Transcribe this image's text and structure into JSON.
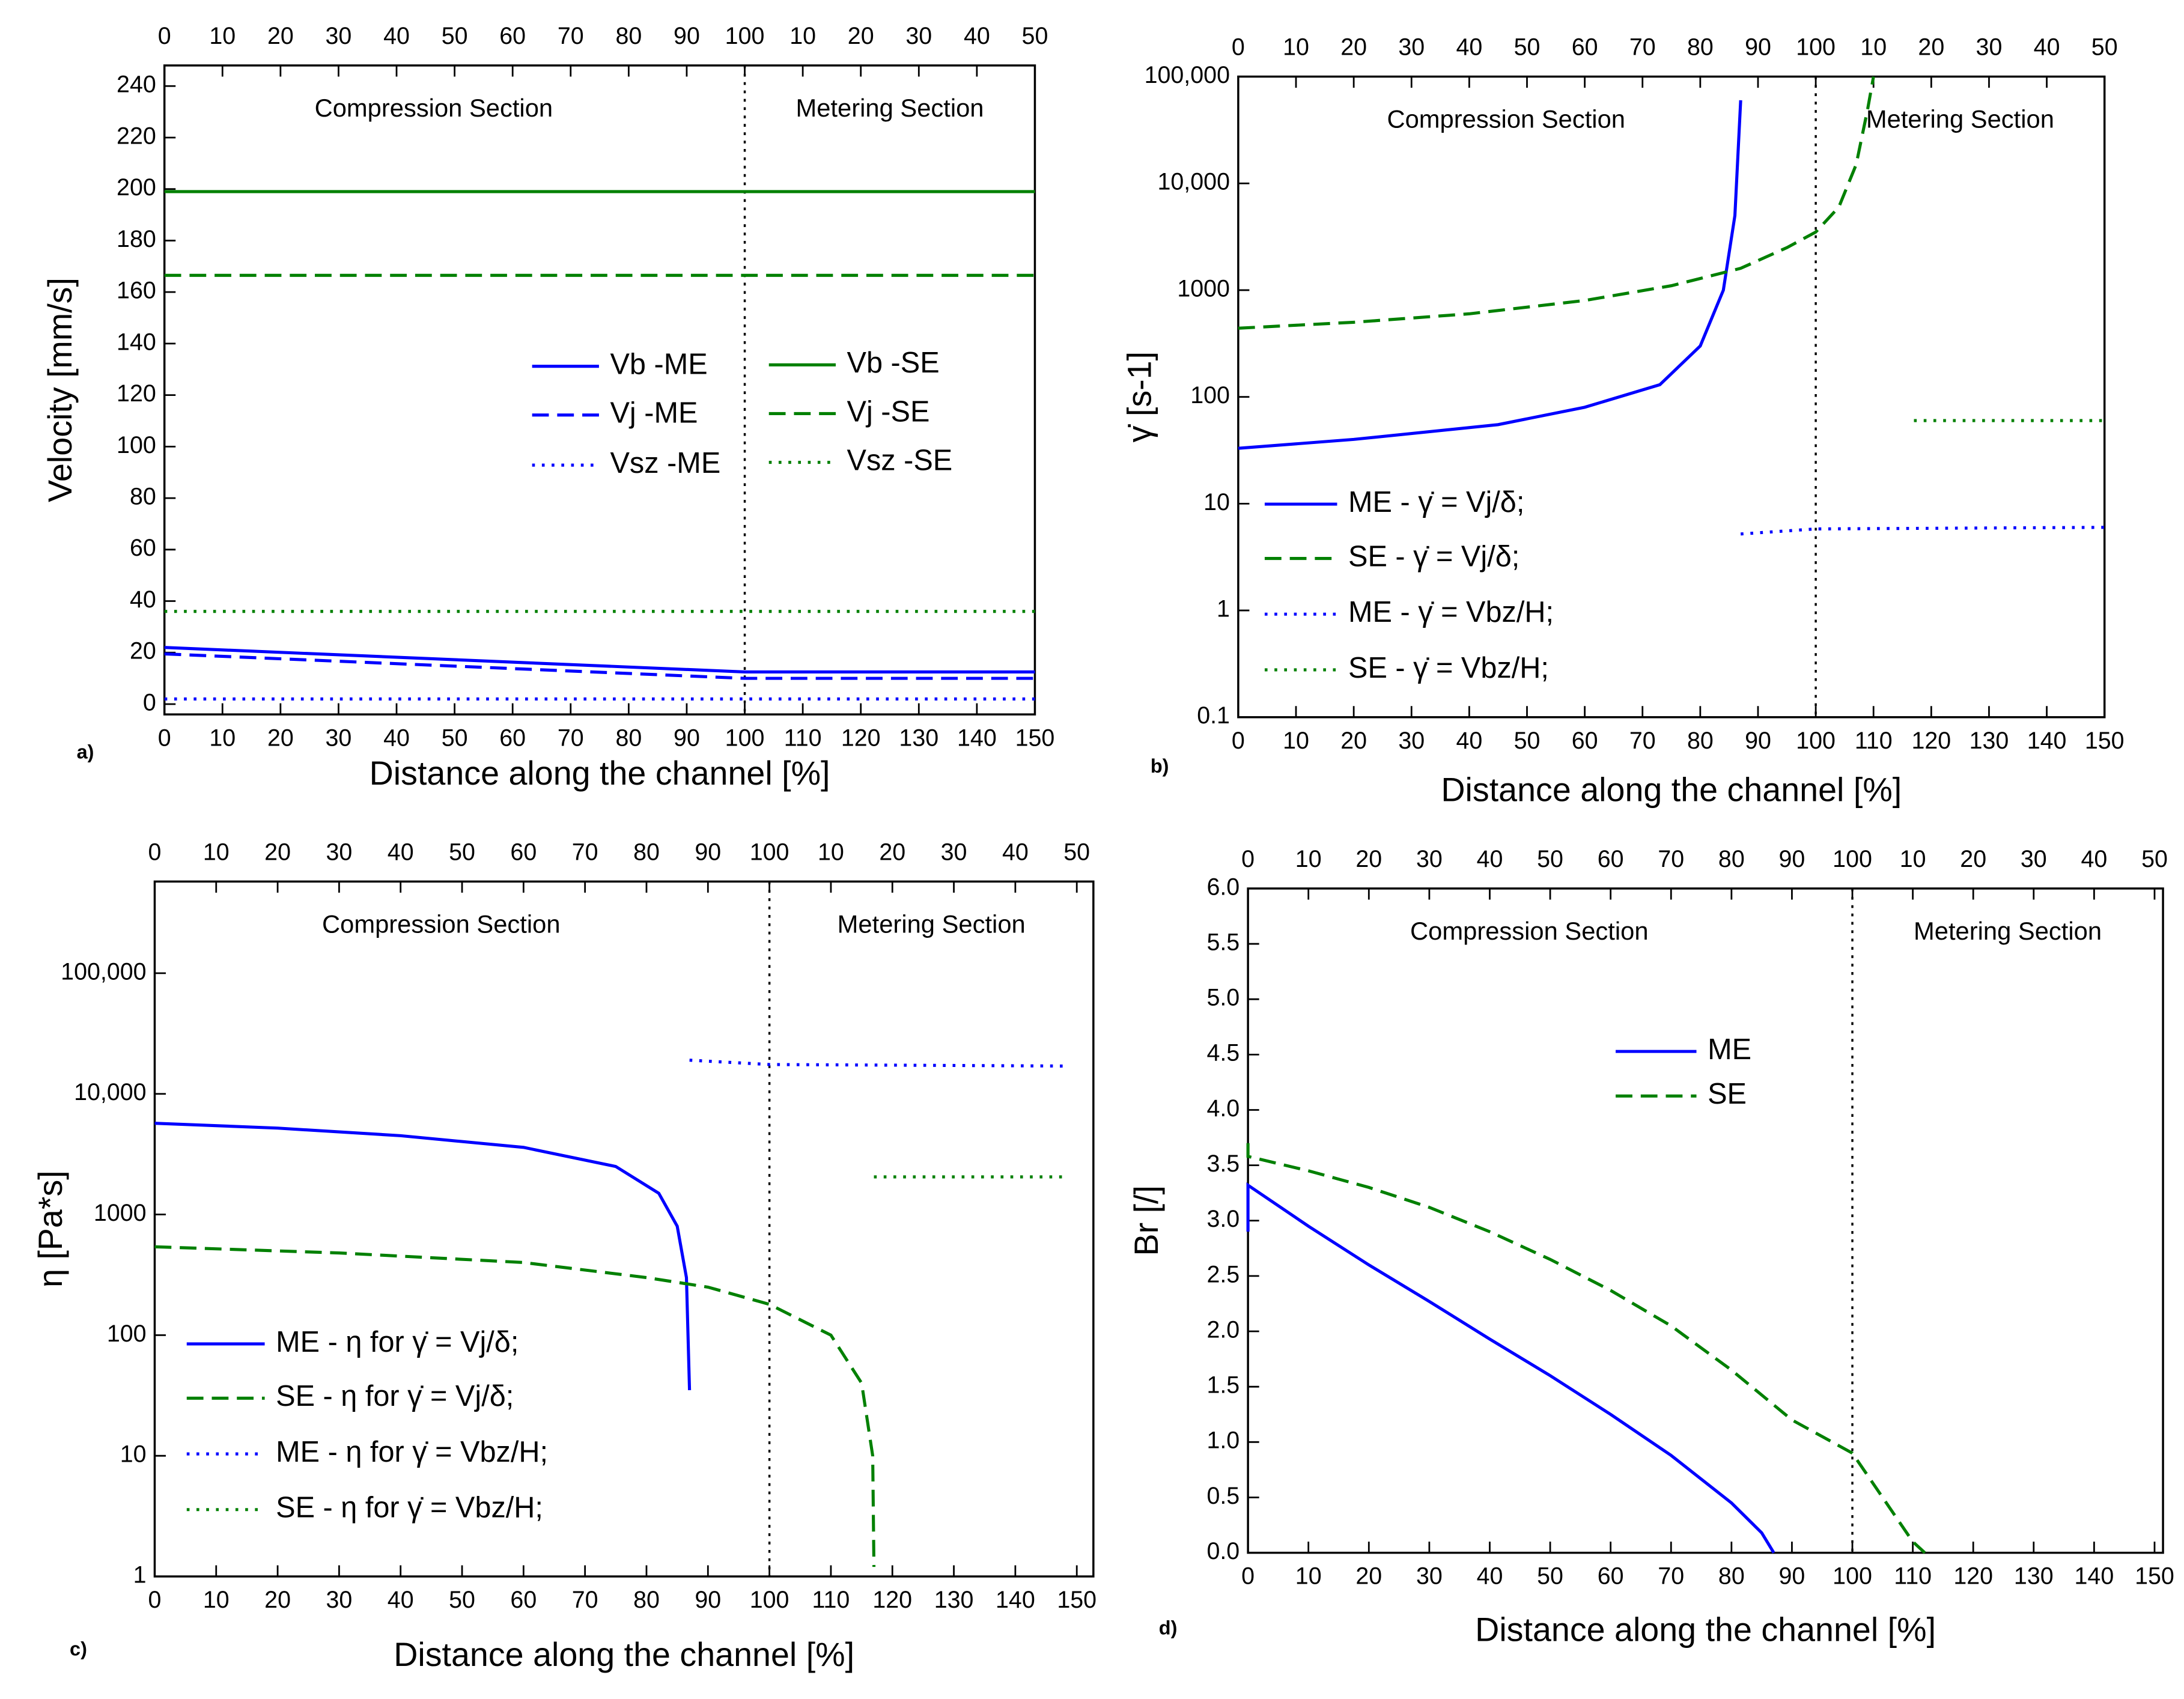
{
  "chart_data": [
    {
      "type": "line",
      "panel": "a)",
      "ylabel": "Velocity [mm/s]",
      "xlabel": "Distance along the channel [%]",
      "annotations": [
        "Compression Section",
        "Metering Section"
      ],
      "vline": 100,
      "legend": "center",
      "xlim": [
        0,
        150
      ],
      "xticks": [
        0,
        10,
        20,
        30,
        40,
        50,
        60,
        70,
        80,
        90,
        100,
        110,
        120,
        130,
        140,
        150
      ],
      "x2ticks": [
        0,
        10,
        20,
        30,
        40,
        50,
        60,
        70,
        80,
        90,
        100,
        {
          "value": 110,
          "label": "10"
        },
        {
          "value": 120,
          "label": "20"
        },
        {
          "value": 130,
          "label": "30"
        },
        {
          "value": 140,
          "label": "40"
        },
        {
          "value": 150,
          "label": "50"
        }
      ],
      "ylim": [
        -4,
        248
      ],
      "yticks": [
        0,
        20,
        40,
        60,
        80,
        100,
        120,
        140,
        160,
        180,
        200,
        220,
        240
      ],
      "log": false,
      "series": [
        {
          "name": "Vb -ME",
          "color": "#0000ff",
          "style": "solid",
          "x": [
            0,
            100,
            150
          ],
          "values": [
            22,
            12.5,
            12.5
          ]
        },
        {
          "name": "Vj -ME",
          "color": "#0000ff",
          "style": "dashed",
          "x": [
            0,
            100,
            150
          ],
          "values": [
            19.5,
            10,
            10
          ]
        },
        {
          "name": "Vsz -ME",
          "color": "#0000ff",
          "style": "dotted",
          "x": [
            0,
            150
          ],
          "values": [
            2,
            2
          ]
        },
        {
          "name": "Vb -SE",
          "color": "#008000",
          "style": "solid",
          "x": [
            0,
            150
          ],
          "values": [
            199,
            199
          ]
        },
        {
          "name": "Vj -SE",
          "color": "#008000",
          "style": "dashed",
          "x": [
            0,
            150
          ],
          "values": [
            166.5,
            166.5
          ]
        },
        {
          "name": "Vsz -SE",
          "color": "#008000",
          "style": "dotted",
          "x": [
            0,
            150
          ],
          "values": [
            36,
            36
          ]
        }
      ]
    },
    {
      "type": "line",
      "panel": "b)",
      "ylabel": "γ̇ [s-1]",
      "xlabel": "Distance along the channel [%]",
      "annotations": [
        "Compression Section",
        "Metering Section"
      ],
      "vline": 100,
      "legend": "lower left",
      "xlim": [
        0,
        150
      ],
      "xticks": [
        0,
        10,
        20,
        30,
        40,
        50,
        60,
        70,
        80,
        90,
        100,
        110,
        120,
        130,
        140,
        150
      ],
      "x2ticks": [
        0,
        10,
        20,
        30,
        40,
        50,
        60,
        70,
        80,
        90,
        100,
        {
          "value": 110,
          "label": "10"
        },
        {
          "value": 120,
          "label": "20"
        },
        {
          "value": 130,
          "label": "30"
        },
        {
          "value": 140,
          "label": "40"
        },
        {
          "value": 150,
          "label": "50"
        }
      ],
      "ylim": [
        0.1,
        100000
      ],
      "yticks": [
        0.1,
        1,
        10,
        100,
        1000,
        {
          "value": 10000,
          "label": "10,000"
        },
        {
          "value": 100000,
          "label": "100,000"
        }
      ],
      "log": true,
      "series": [
        {
          "name": "ME - γ̇ = Vj/δ;",
          "color": "#0000ff",
          "style": "solid",
          "x": [
            0,
            20,
            45,
            60,
            73,
            80,
            84,
            86,
            87
          ],
          "values": [
            33,
            40,
            55,
            80,
            130,
            300,
            1000,
            5000,
            60000
          ]
        },
        {
          "name": "SE - γ̇ = Vj/δ;",
          "color": "#008000",
          "style": "dashed",
          "x": [
            0,
            20,
            40,
            60,
            75,
            87,
            95,
            100,
            104,
            107,
            109,
            110
          ],
          "values": [
            440,
            500,
            600,
            800,
            1100,
            1600,
            2500,
            3500,
            6000,
            15000,
            50000,
            100000
          ]
        },
        {
          "name": "ME - γ̇ = Vbz/H;",
          "color": "#0000ff",
          "style": "dotted",
          "x": [
            87,
            100,
            150
          ],
          "values": [
            5.2,
            5.8,
            6
          ]
        },
        {
          "name": "SE - γ̇ = Vbz/H;",
          "color": "#008000",
          "style": "dotted",
          "x": [
            117,
            150
          ],
          "values": [
            60,
            60
          ]
        }
      ]
    },
    {
      "type": "line",
      "panel": "c)",
      "ylabel": "η [Pa*s]",
      "xlabel": "Distance along the channel [%]",
      "annotations": [
        "Compression Section",
        "Metering Section"
      ],
      "vline": 100,
      "legend": "lower left",
      "xlim": [
        0,
        152.7
      ],
      "xticks": [
        0,
        10,
        20,
        30,
        40,
        50,
        60,
        70,
        80,
        90,
        100,
        110,
        120,
        130,
        140,
        150
      ],
      "x2ticks": [
        0,
        10,
        20,
        30,
        40,
        50,
        60,
        70,
        80,
        90,
        100,
        {
          "value": 110,
          "label": "10"
        },
        {
          "value": 120,
          "label": "20"
        },
        {
          "value": 130,
          "label": "30"
        },
        {
          "value": 140,
          "label": "40"
        },
        {
          "value": 150,
          "label": "50"
        }
      ],
      "ylim": [
        1,
        575000
      ],
      "yticks": [
        1,
        10,
        100,
        1000,
        {
          "value": 10000,
          "label": "10,000"
        },
        {
          "value": 100000,
          "label": "100,000"
        }
      ],
      "log": true,
      "series": [
        {
          "name": "ME - η for γ̇ = Vj/δ;",
          "color": "#0000ff",
          "style": "solid",
          "x": [
            0,
            20,
            40,
            60,
            75,
            82,
            85,
            86.5,
            87
          ],
          "values": [
            5700,
            5200,
            4500,
            3600,
            2500,
            1500,
            800,
            300,
            35
          ]
        },
        {
          "name": "SE - η for γ̇ = Vj/δ;",
          "color": "#008000",
          "style": "dashed",
          "x": [
            0,
            30,
            60,
            80,
            90,
            100,
            110,
            115,
            116.8,
            117
          ],
          "values": [
            540,
            480,
            400,
            300,
            250,
            180,
            100,
            40,
            10,
            1.2
          ]
        },
        {
          "name": "ME - η for γ̇ = Vbz/H;",
          "color": "#0000ff",
          "style": "dotted",
          "x": [
            87,
            100,
            148
          ],
          "values": [
            19000,
            17500,
            17000
          ]
        },
        {
          "name": "SE - η for γ̇ = Vbz/H;",
          "color": "#008000",
          "style": "dotted",
          "x": [
            117,
            148
          ],
          "values": [
            2050,
            2050
          ]
        }
      ]
    },
    {
      "type": "line",
      "panel": "d)",
      "ylabel": "Br [/]",
      "xlabel": "Distance along the channel [%]",
      "annotations": [
        "Compression Section",
        "Metering Section"
      ],
      "vline": 100,
      "legend": "center",
      "xlim": [
        0,
        151.4
      ],
      "xticks": [
        0,
        10,
        20,
        30,
        40,
        50,
        60,
        70,
        80,
        90,
        100,
        110,
        120,
        130,
        140,
        150
      ],
      "x2ticks": [
        0,
        10,
        20,
        30,
        40,
        50,
        60,
        70,
        80,
        90,
        100,
        {
          "value": 110,
          "label": "10"
        },
        {
          "value": 120,
          "label": "20"
        },
        {
          "value": 130,
          "label": "30"
        },
        {
          "value": 140,
          "label": "40"
        },
        {
          "value": 150,
          "label": "50"
        }
      ],
      "ylim": [
        0,
        6
      ],
      "yticks": [
        {
          "value": 0,
          "label": "0.0"
        },
        0.5,
        {
          "value": 1,
          "label": "1.0"
        },
        1.5,
        {
          "value": 2,
          "label": "2.0"
        },
        2.5,
        {
          "value": 3,
          "label": "3.0"
        },
        3.5,
        {
          "value": 4,
          "label": "4.0"
        },
        4.5,
        {
          "value": 5,
          "label": "5.0"
        },
        5.5,
        {
          "value": 6,
          "label": "6.0"
        }
      ],
      "log": false,
      "series": [
        {
          "name": "ME",
          "color": "#0000ff",
          "style": "solid",
          "x": [
            0,
            0,
            10,
            20,
            30,
            40,
            50,
            60,
            70,
            80,
            85,
            87
          ],
          "values": [
            2.9,
            3.32,
            2.95,
            2.6,
            2.27,
            1.93,
            1.6,
            1.25,
            0.88,
            0.45,
            0.18,
            0
          ]
        },
        {
          "name": "SE",
          "color": "#008000",
          "style": "dashed",
          "x": [
            0,
            0,
            10,
            20,
            30,
            40,
            50,
            60,
            70,
            80,
            90,
            100,
            105,
            110,
            112
          ],
          "values": [
            3.7,
            3.58,
            3.45,
            3.3,
            3.12,
            2.9,
            2.65,
            2.37,
            2.05,
            1.65,
            1.2,
            0.9,
            0.5,
            0.1,
            0
          ]
        }
      ]
    }
  ]
}
